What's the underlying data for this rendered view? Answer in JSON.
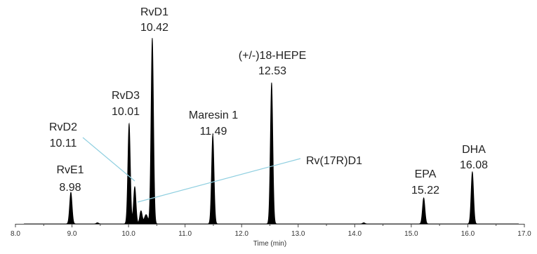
{
  "chart_data": {
    "type": "line",
    "xlabel": "Time (min)",
    "ylabel": "",
    "xlim": [
      8.0,
      17.0
    ],
    "x_ticks": [
      "8.0",
      "9.0",
      "10.0",
      "11.0",
      "12.0",
      "13.0",
      "14.0",
      "15.0",
      "16.0",
      "17.0"
    ],
    "line_color": "#000000",
    "callout_color": "#8fcfe0",
    "peaks": [
      {
        "name": "RvE1",
        "time": "8.98",
        "x": 8.98,
        "height": 0.17
      },
      {
        "name": "RvD3",
        "time": "10.01",
        "x": 10.01,
        "height": 0.54
      },
      {
        "name": "RvD2",
        "time": "10.11",
        "x": 10.11,
        "height": 0.2
      },
      {
        "name": "Rv(17R)D1",
        "time": "",
        "x": 10.22,
        "height": 0.07
      },
      {
        "name": "RvD1",
        "time": "10.42",
        "x": 10.42,
        "height": 1.0
      },
      {
        "name": "Maresin 1",
        "time": "11.49",
        "x": 11.49,
        "height": 0.48
      },
      {
        "name": "(+/-)18-HEPE",
        "time": "12.53",
        "x": 12.53,
        "height": 0.76
      },
      {
        "name": "EPA",
        "time": "15.22",
        "x": 15.22,
        "height": 0.14
      },
      {
        "name": "DHA",
        "time": "16.08",
        "x": 16.08,
        "height": 0.28
      }
    ]
  }
}
